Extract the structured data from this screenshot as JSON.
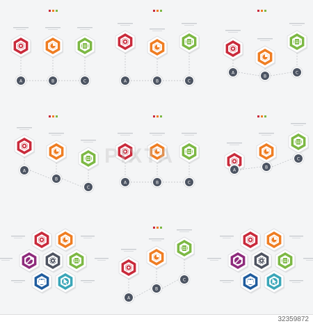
{
  "colors": {
    "red": "#c92a3b",
    "orange": "#ef7d22",
    "green": "#7cb843",
    "purple": "#8e2b7c",
    "darkgray": "#4e5360",
    "blue": "#1f5c9e",
    "teal": "#3aa6b8",
    "node": "#4c5462",
    "lightgray": "#d3d6da",
    "background": "#f4f5f6"
  },
  "step_letters": [
    "A",
    "B",
    "C"
  ],
  "icons": {
    "red": "target-icon",
    "orange": "chart-icon",
    "green": "clipboard-icon",
    "purple": "rocket-icon",
    "darkgray": "gear-icon",
    "blue": "briefcase-icon",
    "teal": "cursor-icon"
  },
  "watermark": "PIXTA",
  "image_id": "32359872"
}
